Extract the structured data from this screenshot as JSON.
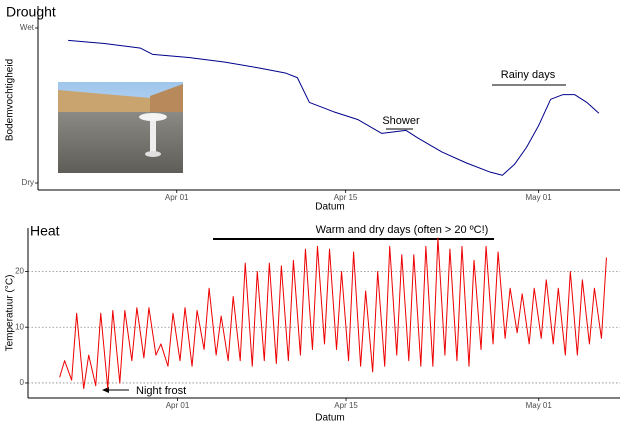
{
  "chart_data": [
    {
      "type": "line",
      "title": "Drought",
      "xlabel": "Datum",
      "ylabel": "Bodemvochtigheid",
      "color": "#00008b",
      "grid": false,
      "x": [
        "03-23",
        "03-26",
        "03-29",
        "03-30",
        "04-02",
        "04-05",
        "04-08",
        "04-10",
        "04-11",
        "04-12",
        "04-14",
        "04-16",
        "04-18",
        "04-20",
        "04-21",
        "04-23",
        "04-25",
        "04-27",
        "04-28",
        "04-29",
        "04-30",
        "05-01",
        "05-02",
        "05-03",
        "05-04",
        "05-05",
        "05-06"
      ],
      "values": [
        0.92,
        0.9,
        0.87,
        0.83,
        0.81,
        0.78,
        0.74,
        0.71,
        0.68,
        0.52,
        0.46,
        0.41,
        0.32,
        0.34,
        0.29,
        0.2,
        0.13,
        0.07,
        0.05,
        0.12,
        0.23,
        0.37,
        0.54,
        0.57,
        0.57,
        0.52,
        0.45
      ],
      "xlim": [
        "03-20T12",
        "05-07T18"
      ],
      "ylim": [
        -0.045,
        1.142
      ],
      "xticks": [
        {
          "value": "04-01",
          "label": "Apr 01"
        },
        {
          "value": "04-15",
          "label": "Apr 15"
        },
        {
          "value": "05-01",
          "label": "May 01"
        }
      ],
      "yticks": [
        {
          "value": 0,
          "label": "Dry"
        },
        {
          "value": 1,
          "label": "Wet"
        }
      ],
      "annotations": [
        "Shower",
        "Rainy days"
      ]
    },
    {
      "type": "line",
      "title": "Heat",
      "xlabel": "Datum",
      "ylabel": "Temperatuur (°C)",
      "color": "#ee0000",
      "grid": true,
      "x": [
        "03-22T05",
        "03-22T15",
        "03-23T05",
        "03-23T15",
        "03-24T05",
        "03-24T15",
        "03-25T05",
        "03-25T15",
        "03-26T05",
        "03-26T15",
        "03-27T05",
        "03-27T15",
        "03-28T05",
        "03-28T15",
        "03-29T05",
        "03-29T15",
        "03-30T05",
        "03-30T15",
        "03-31T05",
        "03-31T15",
        "04-01T05",
        "04-01T15",
        "04-02T05",
        "04-02T15",
        "04-03T05",
        "04-03T15",
        "04-04T05",
        "04-04T15",
        "04-05T05",
        "04-05T15",
        "04-06T05",
        "04-06T15",
        "04-07T05",
        "04-07T15",
        "04-08T05",
        "04-08T15",
        "04-09T05",
        "04-09T15",
        "04-10T05",
        "04-10T15",
        "04-11T05",
        "04-11T15",
        "04-12T05",
        "04-12T15",
        "04-13T05",
        "04-13T15",
        "04-14T05",
        "04-14T15",
        "04-15T05",
        "04-15T15",
        "04-16T05",
        "04-16T15",
        "04-17T05",
        "04-17T15",
        "04-18T05",
        "04-18T15",
        "04-19T05",
        "04-19T15",
        "04-20T05",
        "04-20T15",
        "04-21T05",
        "04-21T15",
        "04-22T05",
        "04-22T15",
        "04-23T05",
        "04-23T15",
        "04-24T05",
        "04-24T15",
        "04-25T05",
        "04-25T15",
        "04-26T05",
        "04-26T15",
        "04-27T05",
        "04-27T15",
        "04-28T05",
        "04-28T15",
        "04-29T05",
        "04-29T15",
        "04-30T05",
        "04-30T15",
        "05-01T05",
        "05-01T15",
        "05-02T05",
        "05-02T15",
        "05-03T05",
        "05-03T15",
        "05-04T05",
        "05-04T15",
        "05-05T05",
        "05-05T15",
        "05-06T05",
        "05-06T15"
      ],
      "values": [
        1,
        4,
        0.5,
        12.5,
        -1,
        5,
        -0.5,
        12.5,
        -1,
        13,
        0,
        13,
        4,
        13.5,
        4.5,
        13.5,
        5,
        7,
        3,
        12.5,
        4,
        13.5,
        3,
        13,
        6,
        17,
        5,
        12,
        4,
        15.5,
        4,
        21.5,
        3,
        20,
        4,
        21.5,
        3.5,
        21,
        4,
        22,
        5,
        24,
        6,
        24.5,
        7,
        24,
        6,
        20,
        4,
        23.5,
        3,
        16.5,
        2,
        20,
        3,
        24.5,
        5,
        23,
        4,
        23,
        3,
        24.5,
        3,
        26,
        5,
        24,
        4,
        24.5,
        3,
        22,
        6,
        24.5,
        7,
        23.5,
        8,
        17,
        9,
        16,
        7,
        17,
        8,
        18.5,
        7,
        17,
        5,
        20,
        5,
        18.5,
        7,
        17,
        8,
        22.5
      ],
      "xlim": [
        "03-19T14",
        "05-07T18"
      ],
      "ylim": [
        -2.7,
        27.8
      ],
      "xticks": [
        {
          "value": "04-01",
          "label": "Apr 01"
        },
        {
          "value": "04-15",
          "label": "Apr 15"
        },
        {
          "value": "05-01",
          "label": "May 01"
        }
      ],
      "yticks": [
        0,
        10,
        20
      ],
      "annotations": [
        "Warm and dry days (often > 20 ºC!)",
        "Night frost"
      ]
    }
  ]
}
